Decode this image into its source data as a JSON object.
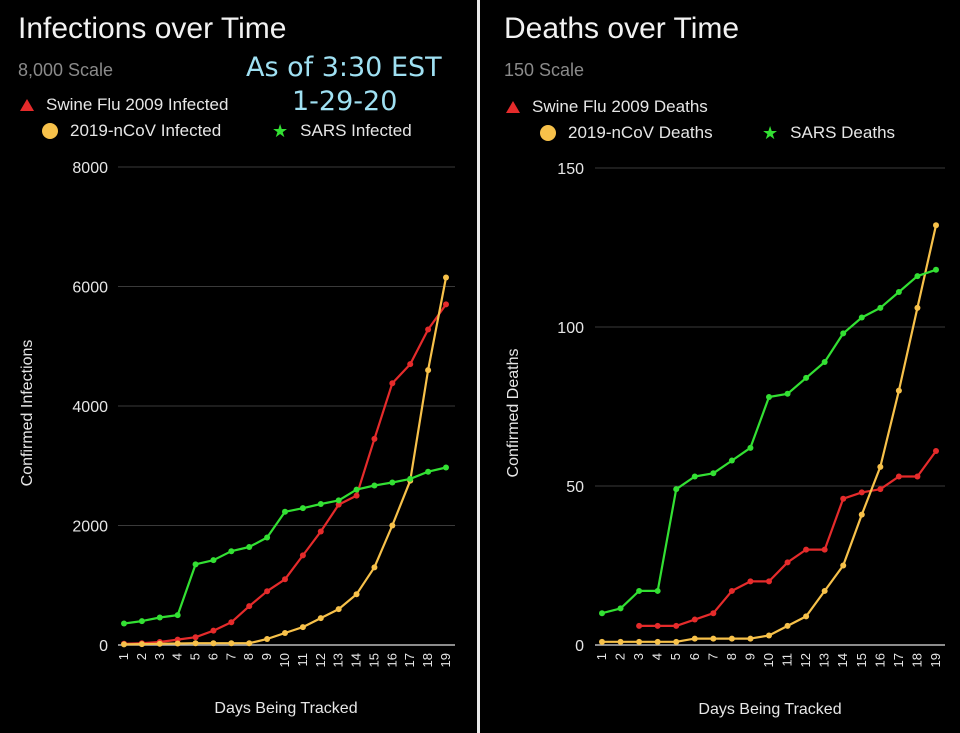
{
  "chart_data": [
    {
      "type": "line",
      "title": "Infections over Time",
      "subtitle": "8,000 Scale",
      "annotation": [
        "As of 3:30 EST",
        "1-29-20"
      ],
      "xlabel": "Days Being Tracked",
      "ylabel": "Confirmed Infections",
      "ylim": [
        0,
        8000
      ],
      "yticks": [
        0,
        2000,
        4000,
        6000,
        8000
      ],
      "x": [
        1,
        2,
        3,
        4,
        5,
        6,
        7,
        8,
        9,
        10,
        11,
        12,
        13,
        14,
        15,
        16,
        17,
        18,
        19
      ],
      "grid": true,
      "legend_position": "top",
      "series": [
        {
          "name": "Swine Flu 2009 Infected",
          "marker": "triangle",
          "color": "#e52b2b",
          "values": [
            20,
            30,
            50,
            90,
            130,
            240,
            380,
            650,
            900,
            1100,
            1500,
            1900,
            2350,
            2500,
            3450,
            4380,
            4700,
            5280,
            5700
          ]
        },
        {
          "name": "2019-nCoV Infected",
          "marker": "circle",
          "color": "#f7c14a",
          "values": [
            10,
            15,
            20,
            25,
            30,
            30,
            30,
            30,
            100,
            200,
            300,
            450,
            600,
            850,
            1300,
            2000,
            2750,
            4600,
            6150
          ]
        },
        {
          "name": "SARS Infected",
          "marker": "star",
          "color": "#33e033",
          "values": [
            360,
            400,
            460,
            500,
            1350,
            1420,
            1570,
            1640,
            1800,
            2230,
            2290,
            2360,
            2420,
            2600,
            2670,
            2720,
            2780,
            2900,
            2970
          ]
        }
      ]
    },
    {
      "type": "line",
      "title": "Deaths over Time",
      "subtitle": "150 Scale",
      "xlabel": "Days Being Tracked",
      "ylabel": "Confirmed  Deaths",
      "ylim": [
        0,
        150
      ],
      "yticks": [
        0,
        50,
        100,
        150
      ],
      "x": [
        1,
        2,
        3,
        4,
        5,
        6,
        7,
        8,
        9,
        10,
        11,
        12,
        13,
        14,
        15,
        16,
        17,
        18,
        19
      ],
      "grid": true,
      "legend_position": "top",
      "series": [
        {
          "name": "Swine Flu 2009 Deaths",
          "marker": "triangle",
          "color": "#e52b2b",
          "values": [
            null,
            null,
            6,
            6,
            6,
            8,
            10,
            17,
            20,
            20,
            26,
            30,
            30,
            46,
            48,
            49,
            53,
            53,
            61
          ]
        },
        {
          "name": "2019-nCoV Deaths",
          "marker": "circle",
          "color": "#f7c14a",
          "values": [
            1,
            1,
            1,
            1,
            1,
            2,
            2,
            2,
            2,
            3,
            6,
            9,
            17,
            25,
            41,
            56,
            80,
            106,
            132
          ]
        },
        {
          "name": "SARS Deaths",
          "marker": "star",
          "color": "#33e033",
          "values": [
            10,
            11.5,
            17,
            17,
            49,
            53,
            54,
            58,
            62,
            78,
            79,
            84,
            89,
            98,
            103,
            106,
            111,
            116,
            118
          ]
        }
      ]
    }
  ]
}
